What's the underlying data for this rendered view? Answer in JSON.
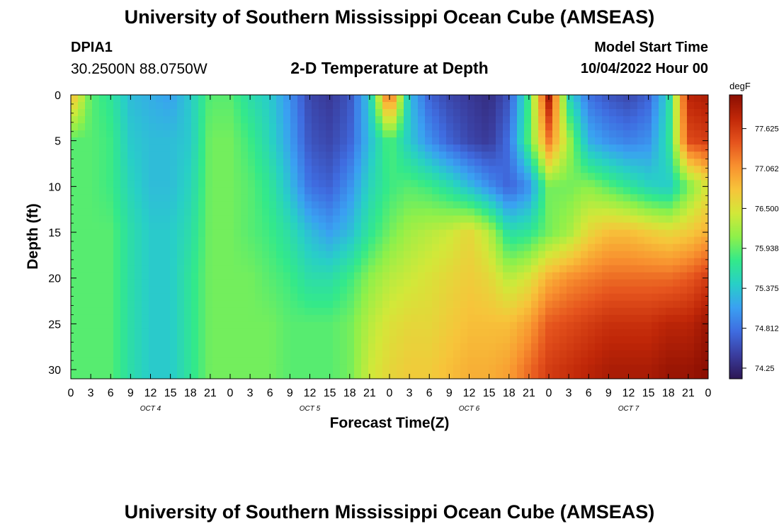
{
  "header": {
    "title": "University of Southern Mississippi Ocean Cube (AMSEAS)",
    "station_id": "DPIA1",
    "station_coords": "30.2500N  88.0750W",
    "plot_title": "2-D Temperature at Depth",
    "model_start_label": "Model Start Time",
    "model_start_value": "10/04/2022 Hour 00"
  },
  "footer": {
    "title": "University of Southern Mississippi Ocean Cube (AMSEAS)"
  },
  "chart_data": {
    "type": "heatmap",
    "xlabel": "Forecast Time(Z)",
    "ylabel": "Depth (ft)",
    "x_range_hours": [
      0,
      96
    ],
    "x_tick_labels": [
      "0",
      "3",
      "6",
      "9",
      "12",
      "15",
      "18",
      "21",
      "0",
      "3",
      "6",
      "9",
      "12",
      "15",
      "18",
      "21",
      "0",
      "3",
      "6",
      "9",
      "12",
      "15",
      "18",
      "21",
      "0",
      "3",
      "6",
      "9",
      "12",
      "15",
      "18",
      "21",
      "0"
    ],
    "day_labels": [
      "OCT 4",
      "OCT 5",
      "OCT 6",
      "OCT 7"
    ],
    "ylim": [
      0,
      31
    ],
    "y_ticks": [
      0,
      5,
      10,
      15,
      20,
      25,
      30
    ],
    "y_tick_labels": [
      "0",
      "5",
      "10",
      "15",
      "20",
      "25",
      "30"
    ],
    "colorbar": {
      "unit": "degF",
      "range": [
        74.1,
        78.1
      ],
      "tick_values": [
        77.625,
        77.062,
        76.5,
        75.938,
        75.375,
        74.812,
        74.25
      ],
      "tick_labels": [
        "77.625",
        "77.062",
        "76.500",
        "75.938",
        "75.375",
        "74.812",
        "74.25"
      ],
      "colors": [
        "#2c1654",
        "#3a3d9e",
        "#3f6ce0",
        "#3aa0f2",
        "#28cfc7",
        "#33e98a",
        "#8ef04a",
        "#d2e839",
        "#f7c43a",
        "#f8902f",
        "#e5531d",
        "#c02708",
        "#8a0e02"
      ]
    },
    "grid_time_hours": [
      0,
      3,
      6,
      9,
      12,
      15,
      18,
      21,
      24,
      27,
      30,
      33,
      36,
      39,
      42,
      45,
      48,
      51,
      54,
      57,
      60,
      63,
      66,
      69,
      72,
      75,
      78,
      81,
      84,
      87,
      90,
      93,
      96
    ],
    "grid_depth_ft": [
      0,
      5,
      10,
      15,
      20,
      25,
      30
    ],
    "temperature_degF": [
      [
        76.9,
        75.9,
        75.7,
        75.3,
        75.2,
        75.1,
        75.4,
        75.9,
        75.9,
        75.6,
        75.4,
        75.0,
        74.5,
        74.4,
        74.6,
        75.4,
        77.5,
        75.3,
        74.7,
        74.5,
        74.4,
        74.3,
        74.6,
        75.8,
        77.9,
        75.5,
        74.8,
        74.6,
        74.5,
        74.7,
        75.5,
        77.8,
        77.9
      ],
      [
        75.9,
        75.9,
        75.8,
        75.4,
        75.3,
        75.3,
        75.4,
        76.0,
        76.0,
        75.8,
        75.5,
        75.1,
        74.6,
        74.5,
        74.7,
        75.3,
        75.9,
        75.4,
        75.0,
        74.7,
        74.5,
        74.4,
        74.8,
        75.9,
        77.2,
        76.2,
        75.2,
        75.0,
        74.9,
        75.0,
        75.6,
        77.5,
        77.6
      ],
      [
        75.9,
        75.9,
        75.8,
        75.5,
        75.3,
        75.3,
        75.5,
        76.0,
        76.0,
        75.9,
        75.7,
        75.3,
        74.8,
        74.7,
        75.0,
        75.5,
        75.8,
        75.9,
        75.8,
        75.6,
        75.3,
        75.0,
        74.7,
        75.0,
        76.0,
        76.0,
        76.1,
        75.9,
        75.7,
        75.5,
        75.4,
        76.0,
        76.5
      ],
      [
        75.9,
        75.9,
        75.9,
        75.6,
        75.4,
        75.4,
        75.6,
        76.0,
        76.0,
        75.9,
        75.8,
        75.6,
        75.3,
        75.1,
        75.3,
        75.7,
        76.0,
        76.2,
        76.3,
        76.4,
        76.6,
        76.3,
        75.6,
        75.7,
        76.0,
        76.2,
        76.6,
        76.8,
        76.8,
        76.7,
        76.6,
        76.7,
        76.9
      ],
      [
        75.9,
        75.9,
        75.9,
        75.6,
        75.4,
        75.4,
        75.7,
        76.0,
        76.0,
        76.0,
        75.9,
        75.8,
        75.6,
        75.6,
        75.8,
        76.1,
        76.3,
        76.4,
        76.5,
        76.6,
        76.7,
        76.6,
        76.3,
        76.5,
        76.9,
        77.1,
        77.2,
        77.3,
        77.3,
        77.3,
        77.3,
        77.4,
        77.6
      ],
      [
        75.9,
        75.9,
        75.9,
        75.6,
        75.4,
        75.4,
        75.7,
        76.0,
        76.0,
        76.0,
        76.0,
        75.9,
        75.9,
        75.9,
        76.0,
        76.3,
        76.5,
        76.6,
        76.6,
        76.7,
        76.8,
        76.8,
        76.8,
        77.0,
        77.4,
        77.5,
        77.6,
        77.7,
        77.7,
        77.7,
        77.8,
        77.8,
        78.0
      ],
      [
        75.9,
        75.9,
        75.9,
        75.6,
        75.4,
        75.4,
        75.7,
        76.0,
        76.0,
        76.0,
        76.0,
        75.9,
        75.9,
        75.9,
        76.0,
        76.4,
        76.6,
        76.7,
        76.7,
        76.8,
        76.9,
        76.9,
        77.0,
        77.3,
        77.6,
        77.7,
        77.8,
        77.9,
        77.9,
        77.9,
        78.0,
        78.0,
        78.1
      ]
    ]
  }
}
